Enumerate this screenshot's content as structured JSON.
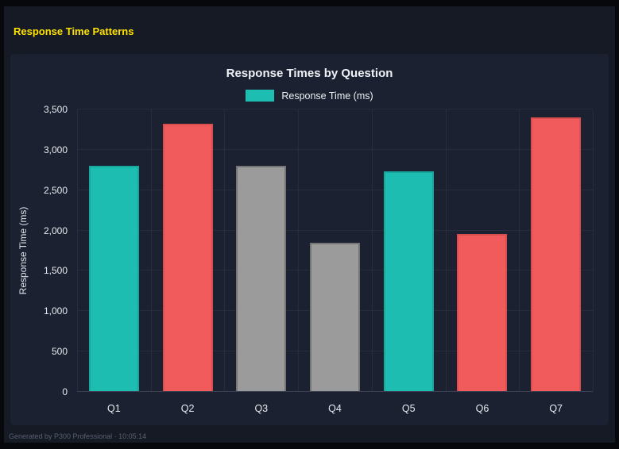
{
  "page": {
    "title": "Response Time Patterns",
    "title_color": "#ffe100",
    "footer": "Generated by P300 Professional · 10:05:14"
  },
  "chart": {
    "title": "Response Times by Question",
    "legend_label": "Response Time (ms)",
    "legend_color": "#1dbdb2",
    "ylabel": "Response Time (ms)"
  },
  "colors": {
    "teal": "#1dbdb2",
    "red": "#f15b5b",
    "gray": "#9b9b9b",
    "background": "#151a25",
    "card_background": "#1b2130"
  },
  "chart_data": {
    "type": "bar",
    "title": "Response Times by Question",
    "categories": [
      "Q1",
      "Q2",
      "Q3",
      "Q4",
      "Q5",
      "Q6",
      "Q7"
    ],
    "values": [
      2800,
      3320,
      2800,
      1850,
      2730,
      1960,
      3400
    ],
    "bar_colors": [
      "#1dbdb2",
      "#f15b5b",
      "#9b9b9b",
      "#9b9b9b",
      "#1dbdb2",
      "#f15b5b",
      "#f15b5b"
    ],
    "bar_border_colors": [
      "#17a79d",
      "#d94f4f",
      "#757575",
      "#757575",
      "#17a79d",
      "#d94f4f",
      "#d94f4f"
    ],
    "xlabel": "",
    "ylabel": "Response Time (ms)",
    "ylim": [
      0,
      3500
    ],
    "ytick_step": 500,
    "ytick_labels": [
      "0",
      "500",
      "1,000",
      "1,500",
      "2,000",
      "2,500",
      "3,000",
      "3,500"
    ],
    "legend": {
      "label": "Response Time (ms)",
      "position": "top"
    },
    "grid": true
  }
}
